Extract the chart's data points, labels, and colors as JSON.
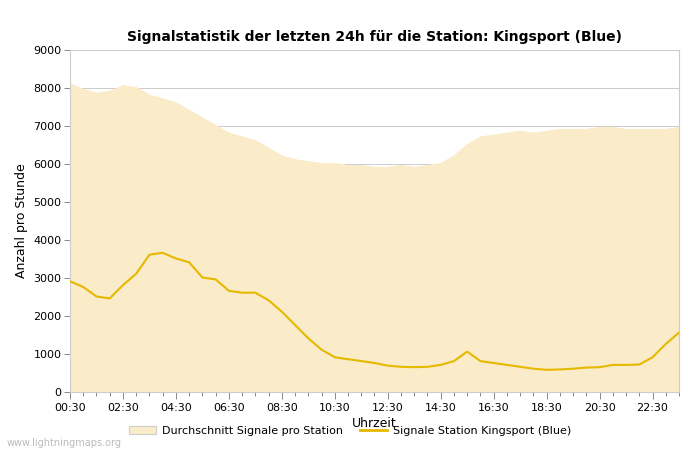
{
  "title": "Signalstatistik der letzten 24h für die Station: Kingsport (Blue)",
  "xlabel": "Uhrzeit",
  "ylabel": "Anzahl pro Stunde",
  "background_color": "#ffffff",
  "fill_color": "#faecc8",
  "line_color": "#e6b800",
  "ylim": [
    0,
    9000
  ],
  "yticks": [
    0,
    1000,
    2000,
    3000,
    4000,
    5000,
    6000,
    7000,
    8000,
    9000
  ],
  "xtick_labels": [
    "00:30",
    "02:30",
    "04:30",
    "06:30",
    "08:30",
    "10:30",
    "12:30",
    "14:30",
    "16:30",
    "18:30",
    "20:30",
    "22:30"
  ],
  "watermark": "www.lightningmaps.org",
  "legend_fill_label": "Durchschnitt Signale pro Station",
  "legend_line_label": "Signale Station Kingsport (Blue)",
  "avg_times": [
    0.5,
    1.0,
    1.5,
    2.0,
    2.5,
    3.0,
    3.5,
    4.0,
    4.5,
    5.0,
    5.5,
    6.0,
    6.5,
    7.0,
    7.5,
    8.0,
    8.5,
    9.0,
    9.5,
    10.0,
    10.5,
    11.0,
    11.5,
    12.0,
    12.5,
    13.0,
    13.5,
    14.0,
    14.5,
    15.0,
    15.5,
    16.0,
    16.5,
    17.0,
    17.5,
    18.0,
    18.5,
    19.0,
    19.5,
    20.0,
    20.5,
    21.0,
    21.5,
    22.0,
    22.5,
    23.0,
    23.5
  ],
  "avg_values": [
    8100,
    7950,
    7850,
    7900,
    8050,
    8000,
    7800,
    7700,
    7600,
    7400,
    7200,
    7000,
    6800,
    6700,
    6600,
    6400,
    6200,
    6100,
    6050,
    6000,
    6000,
    5950,
    5950,
    5900,
    5900,
    5950,
    5900,
    5950,
    6000,
    6200,
    6500,
    6700,
    6750,
    6800,
    6850,
    6800,
    6850,
    6900,
    6900,
    6900,
    6950,
    6950,
    6900,
    6900,
    6900,
    6900,
    6950
  ],
  "station_times": [
    0.5,
    1.0,
    1.5,
    2.0,
    2.5,
    3.0,
    3.5,
    4.0,
    4.5,
    5.0,
    5.5,
    6.0,
    6.5,
    7.0,
    7.5,
    8.0,
    8.5,
    9.0,
    9.5,
    10.0,
    10.5,
    11.0,
    11.5,
    12.0,
    12.5,
    13.0,
    13.5,
    14.0,
    14.5,
    15.0,
    15.5,
    16.0,
    16.5,
    17.0,
    17.5,
    18.0,
    18.5,
    19.0,
    19.5,
    20.0,
    20.5,
    21.0,
    21.5,
    22.0,
    22.5,
    23.0,
    23.5
  ],
  "station_values": [
    2900,
    2750,
    2500,
    2450,
    2800,
    3100,
    3600,
    3650,
    3500,
    3400,
    3000,
    2950,
    2650,
    2600,
    2600,
    2400,
    2100,
    1750,
    1400,
    1100,
    900,
    850,
    800,
    750,
    680,
    650,
    640,
    650,
    700,
    800,
    1050,
    800,
    750,
    700,
    650,
    600,
    570,
    580,
    600,
    630,
    640,
    700,
    700,
    710,
    900,
    1250,
    1550
  ]
}
